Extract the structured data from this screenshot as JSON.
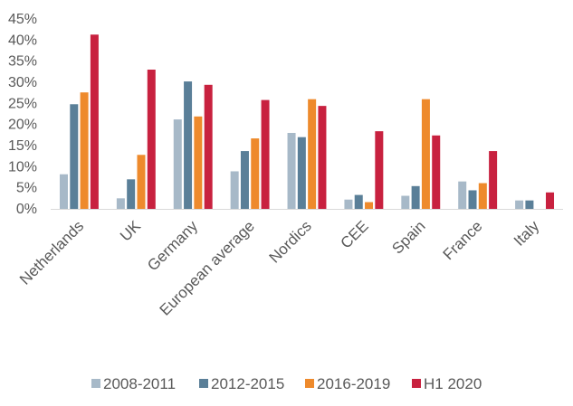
{
  "chart_data": {
    "type": "bar",
    "title": "",
    "xlabel": "",
    "ylabel": "",
    "ylim": [
      0,
      45
    ],
    "yticks": [
      0,
      5,
      10,
      15,
      20,
      25,
      30,
      35,
      40,
      45
    ],
    "ytick_labels": [
      "0%",
      "5%",
      "10%",
      "15%",
      "20%",
      "25%",
      "30%",
      "35%",
      "40%",
      "45%"
    ],
    "grid": false,
    "legend_position": "bottom",
    "categories": [
      "Netherlands",
      "UK",
      "Germany",
      "European average",
      "Nordics",
      "CEE",
      "Spain",
      "France",
      "Italy"
    ],
    "series": [
      {
        "name": "2008-2011",
        "color": "#a7b9c8",
        "values": [
          8.2,
          2.5,
          21.2,
          8.9,
          18.0,
          2.2,
          3.1,
          6.5,
          2.0
        ]
      },
      {
        "name": "2012-2015",
        "color": "#5a7f98",
        "values": [
          24.8,
          7.0,
          30.2,
          13.7,
          17.0,
          3.3,
          5.4,
          4.4,
          2.0
        ]
      },
      {
        "name": "2016-2019",
        "color": "#ee8a2c",
        "values": [
          27.6,
          12.8,
          21.9,
          16.7,
          26.0,
          1.6,
          26.0,
          6.1,
          0
        ]
      },
      {
        "name": "H1 2020",
        "color": "#c8213f",
        "values": [
          41.3,
          33.0,
          29.4,
          25.8,
          24.4,
          18.4,
          17.4,
          13.7,
          3.9
        ]
      }
    ]
  }
}
